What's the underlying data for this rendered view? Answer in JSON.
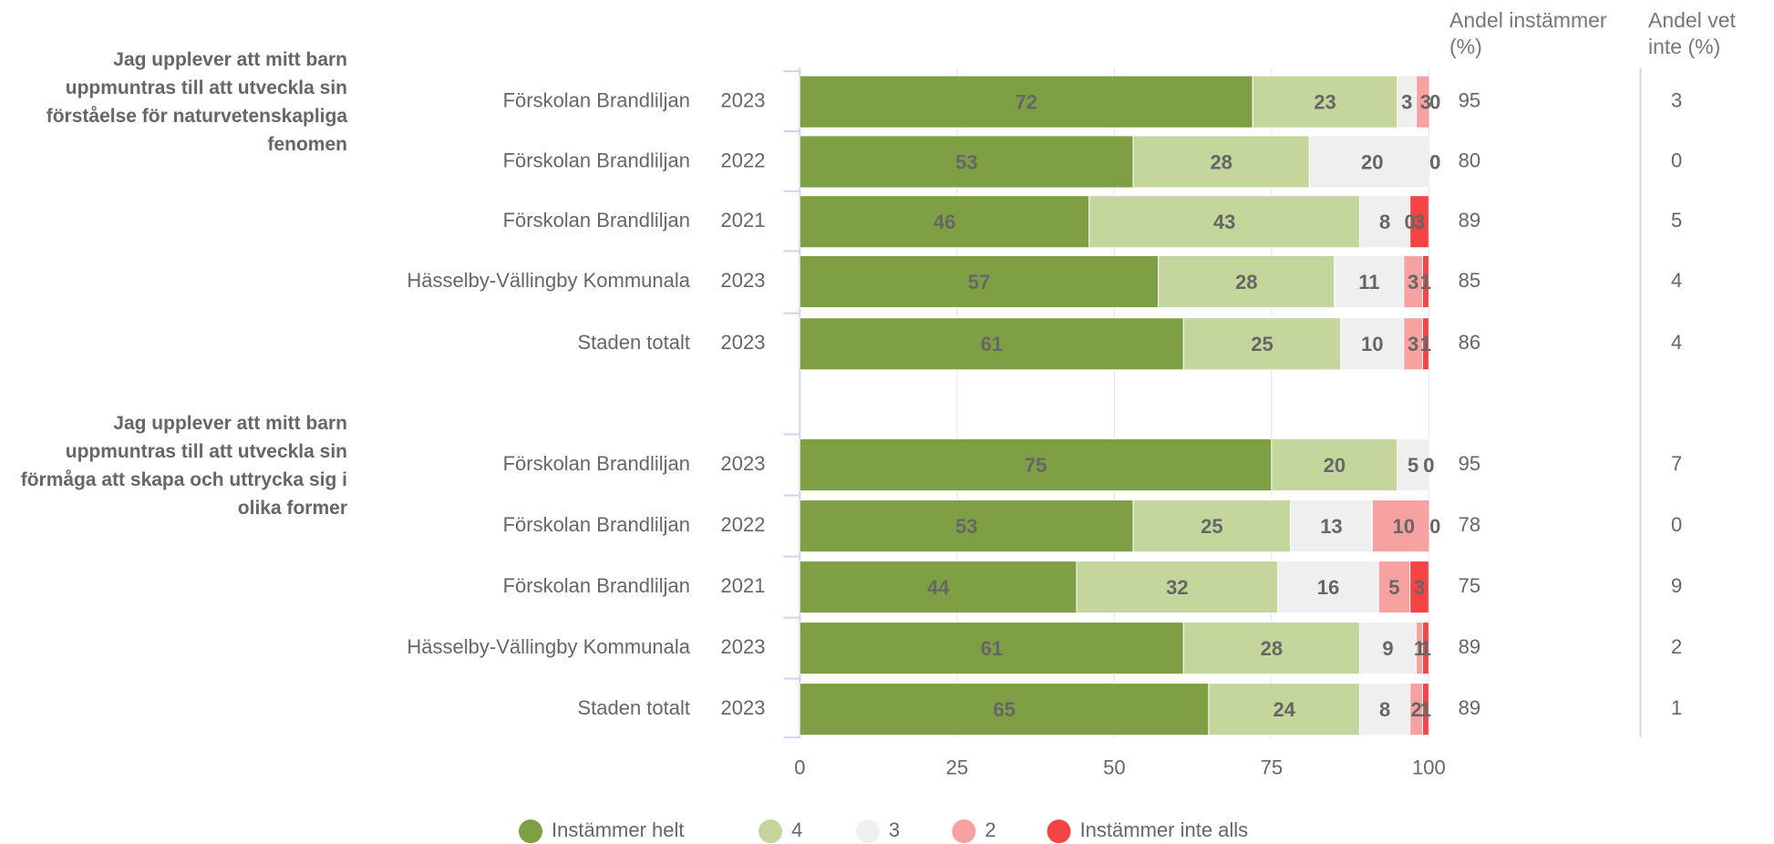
{
  "chart_data": {
    "type": "bar",
    "orientation": "horizontal",
    "stacked": true,
    "xlim": [
      0,
      100
    ],
    "xticks": [
      0,
      25,
      50,
      75,
      100
    ],
    "grid": true,
    "legend": "bottom",
    "column_headers": [
      "Andel instämmer (%)",
      "Andel vet inte (%)"
    ],
    "groups": [
      {
        "title": "Jag upplever att mitt barn uppmuntras till att utveckla sin förståelse för naturvetenskapliga fenomen",
        "categories": [
          "Förskolan Brandliljan",
          "Förskolan Brandliljan",
          "Förskolan Brandliljan",
          "Hässelby-Vällingby Kommunala",
          "Staden totalt"
        ],
        "years": [
          "2023",
          "2022",
          "2021",
          "2023",
          "2023"
        ],
        "series": [
          {
            "name": "Instämmer helt",
            "color": "#7f9f44",
            "values": [
              72,
              53,
              46,
              57,
              61
            ]
          },
          {
            "name": "4",
            "color": "#c3d79c",
            "values": [
              23,
              28,
              43,
              28,
              25
            ]
          },
          {
            "name": "3",
            "color": "#efefef",
            "values": [
              3,
              20,
              8,
              11,
              10
            ]
          },
          {
            "name": "2",
            "color": "#f7a1a1",
            "values": [
              3,
              0,
              0,
              3,
              3
            ]
          },
          {
            "name": "Instämmer inte alls",
            "color": "#f64343",
            "values": [
              0,
              0,
              3,
              1,
              1
            ]
          }
        ],
        "share_agree": [
          95,
          80,
          89,
          85,
          86
        ],
        "share_unknown": [
          3,
          0,
          5,
          4,
          4
        ]
      },
      {
        "title": "Jag upplever att mitt barn uppmuntras till att utveckla sin förmåga att skapa och uttrycka sig i olika former",
        "categories": [
          "Förskolan Brandliljan",
          "Förskolan Brandliljan",
          "Förskolan Brandliljan",
          "Hässelby-Vällingby Kommunala",
          "Staden totalt"
        ],
        "years": [
          "2023",
          "2022",
          "2021",
          "2023",
          "2023"
        ],
        "series": [
          {
            "name": "Instämmer helt",
            "color": "#7f9f44",
            "values": [
              75,
              53,
              44,
              61,
              65
            ]
          },
          {
            "name": "4",
            "color": "#c3d79c",
            "values": [
              20,
              25,
              32,
              28,
              24
            ]
          },
          {
            "name": "3",
            "color": "#efefef",
            "values": [
              5,
              13,
              16,
              9,
              8
            ]
          },
          {
            "name": "2",
            "color": "#f7a1a1",
            "values": [
              0,
              10,
              5,
              1,
              2
            ]
          },
          {
            "name": "Instämmer inte alls",
            "color": "#f64343",
            "values": [
              0,
              0,
              3,
              1,
              1
            ]
          }
        ],
        "share_agree": [
          95,
          78,
          75,
          89,
          89
        ],
        "share_unknown": [
          7,
          0,
          9,
          2,
          1
        ]
      }
    ]
  }
}
